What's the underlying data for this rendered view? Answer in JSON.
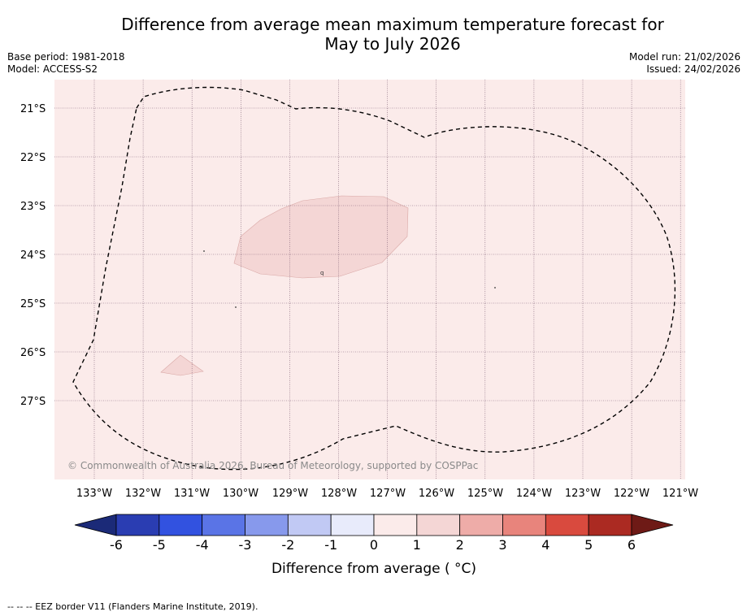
{
  "title_line1": "Difference from average mean maximum temperature forecast for",
  "title_line2": "May to July 2026",
  "meta": {
    "base_period": "Base period: 1981-2018",
    "model": "Model: ACCESS-S2",
    "model_run": "Model run: 21/02/2026",
    "issued": "Issued: 24/02/2026"
  },
  "map": {
    "lat_labels": [
      "21°S",
      "22°S",
      "23°S",
      "24°S",
      "25°S",
      "26°S",
      "27°S"
    ],
    "lon_labels": [
      "133°W",
      "132°W",
      "131°W",
      "130°W",
      "129°W",
      "128°W",
      "127°W",
      "126°W",
      "125°W",
      "124°W",
      "123°W",
      "122°W",
      "121°W"
    ],
    "copyright": "© Commonwealth of Australia 2026, Bureau of Meteorology, supported by COSPPac",
    "place_marker": "q",
    "background_color": "#fbebea",
    "anomaly_color": "#f4d6d5",
    "eez_color": "#000000"
  },
  "colorbar": {
    "title": "Difference from average ( °C)",
    "ticks": [
      "-6",
      "-5",
      "-4",
      "-3",
      "-2",
      "-1",
      "0",
      "1",
      "2",
      "3",
      "4",
      "5",
      "6"
    ],
    "under_color": "#1b2a78",
    "over_color": "#6e1a16",
    "colors": [
      "#2a3db2",
      "#3252e0",
      "#5a74e6",
      "#8799ec",
      "#c1c9f4",
      "#e8ebfb",
      "#fbebea",
      "#f4d6d5",
      "#eeaca8",
      "#e8847c",
      "#d94a3e",
      "#ab2a22"
    ]
  },
  "footer": "--  --  -- EEZ border V11 (Flanders Marine Institute, 2019)."
}
